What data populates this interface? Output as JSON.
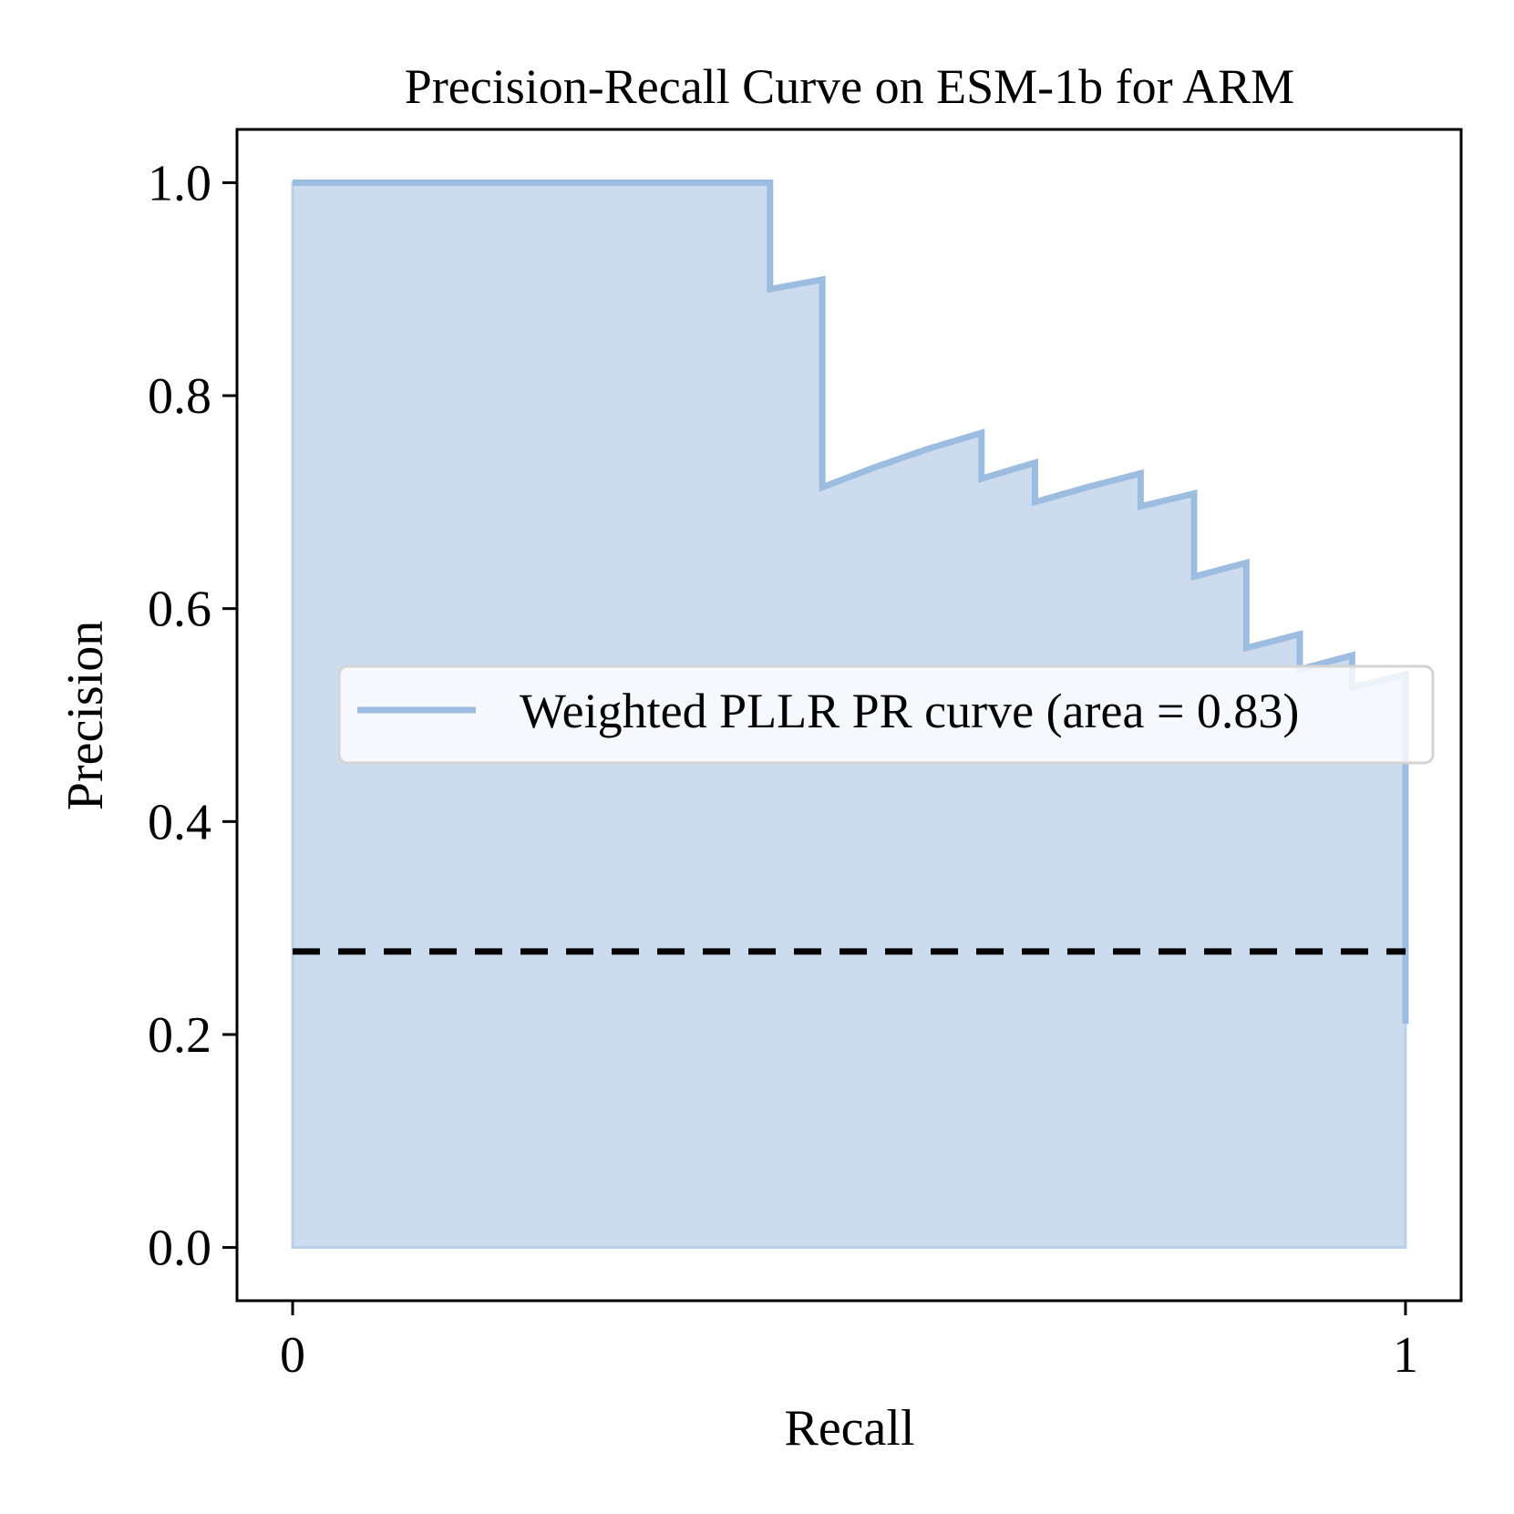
{
  "chart_data": {
    "type": "area",
    "title": "Precision-Recall Curve on ESM-1b for ARM",
    "xlabel": "Recall",
    "ylabel": "Precision",
    "xlim": [
      -0.05,
      1.05
    ],
    "ylim": [
      -0.05,
      1.05
    ],
    "xticks": [
      0,
      1
    ],
    "xtick_labels": [
      "0",
      "1"
    ],
    "yticks": [
      0.0,
      0.2,
      0.4,
      0.6,
      0.8,
      1.0
    ],
    "ytick_labels": [
      "0.0",
      "0.2",
      "0.4",
      "0.6",
      "0.8",
      "1.0"
    ],
    "grid": false,
    "legend": {
      "placement": "center-right"
    },
    "series": [
      {
        "name": "Weighted PLLR PR curve (area = 0.83)",
        "color": "#9dbde0",
        "fill_color": "#ccdcee",
        "drawstyle": "steps",
        "points": [
          [
            0.0,
            1.0
          ],
          [
            0.429,
            1.0
          ],
          [
            0.429,
            0.9
          ],
          [
            0.476,
            0.909
          ],
          [
            0.476,
            0.714
          ],
          [
            0.524,
            0.733
          ],
          [
            0.571,
            0.75
          ],
          [
            0.619,
            0.765
          ],
          [
            0.619,
            0.722
          ],
          [
            0.667,
            0.737
          ],
          [
            0.667,
            0.7
          ],
          [
            0.714,
            0.714
          ],
          [
            0.762,
            0.727
          ],
          [
            0.762,
            0.696
          ],
          [
            0.81,
            0.708
          ],
          [
            0.81,
            0.63
          ],
          [
            0.857,
            0.643
          ],
          [
            0.857,
            0.563
          ],
          [
            0.905,
            0.576
          ],
          [
            0.905,
            0.543
          ],
          [
            0.952,
            0.556
          ],
          [
            0.952,
            0.526
          ],
          [
            1.0,
            0.538
          ],
          [
            1.0,
            0.21
          ]
        ]
      },
      {
        "name": "",
        "color": "#000000",
        "linestyle": "dashed",
        "points": [
          [
            0.0,
            0.278
          ],
          [
            1.0,
            0.278
          ]
        ]
      }
    ]
  }
}
